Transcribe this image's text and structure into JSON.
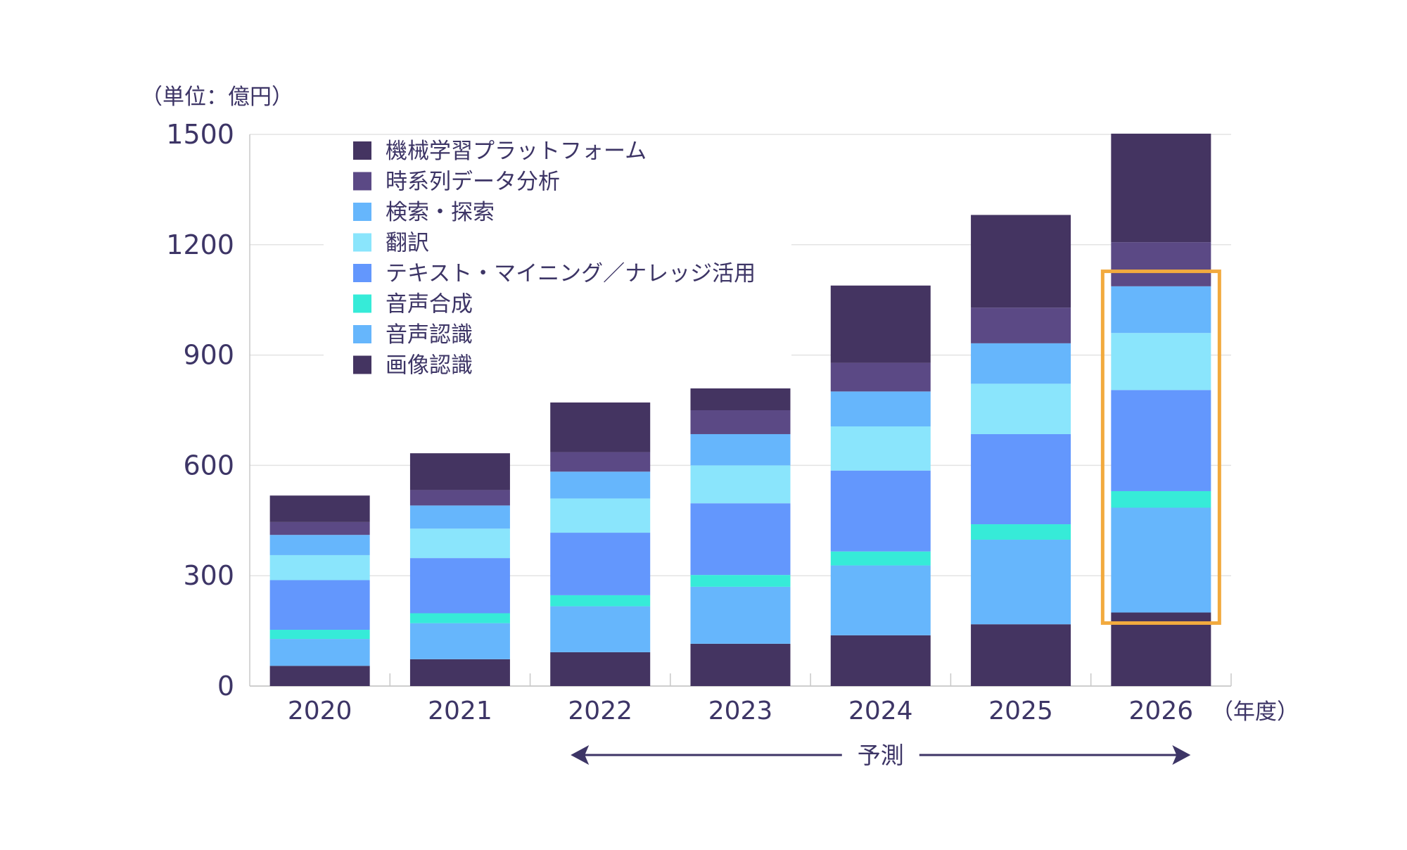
{
  "chart_data": {
    "type": "bar",
    "stacked": true,
    "unit_label": "（単位：億円）",
    "x_unit_label": "（年度）",
    "categories": [
      "2020",
      "2021",
      "2022",
      "2023",
      "2024",
      "2025",
      "2026"
    ],
    "ylim": [
      0,
      1500
    ],
    "yticks": [
      "0",
      "300",
      "600",
      "900",
      "1200",
      "1500"
    ],
    "grid": true,
    "legend_position": "top-left",
    "series": [
      {
        "name": "画像認識",
        "color": "#443461",
        "values": [
          55,
          73,
          92,
          115,
          138,
          168,
          200
        ]
      },
      {
        "name": "音声認識",
        "color": "#66b6fc",
        "values": [
          73,
          98,
          125,
          155,
          190,
          230,
          285
        ]
      },
      {
        "name": "音声合成",
        "color": "#36ebd8",
        "values": [
          25,
          27,
          30,
          32,
          38,
          42,
          45
        ]
      },
      {
        "name": "テキスト・マイニング／ナレッジ活用",
        "color": "#6397fd",
        "values": [
          135,
          150,
          170,
          195,
          220,
          245,
          275
        ]
      },
      {
        "name": "翻訳",
        "color": "#8ae5fc",
        "values": [
          68,
          80,
          93,
          103,
          120,
          137,
          155
        ]
      },
      {
        "name": "検索・探索",
        "color": "#66b6fc",
        "values": [
          55,
          63,
          73,
          85,
          95,
          110,
          127
        ]
      },
      {
        "name": "時系列データ分析",
        "color": "#5b4985",
        "values": [
          35,
          42,
          53,
          65,
          78,
          97,
          120
        ]
      },
      {
        "name": "機械学習プラットフォーム",
        "color": "#443461",
        "values": [
          72,
          100,
          135,
          177,
          210,
          252,
          295
        ]
      }
    ],
    "annotation": {
      "label": "予測",
      "range": [
        "2022",
        "2026"
      ],
      "highlight_category": "2026",
      "highlight_color": "#f2aa3e"
    }
  }
}
